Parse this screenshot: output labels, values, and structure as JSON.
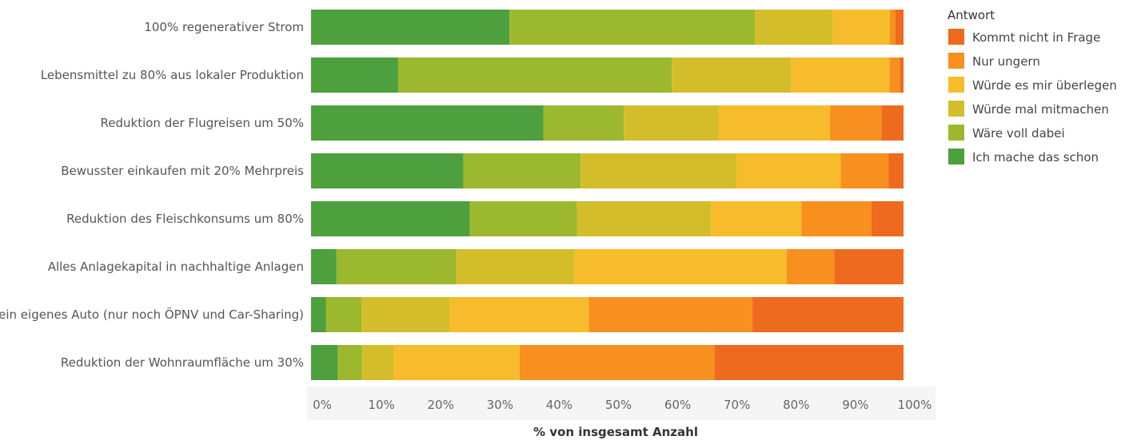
{
  "chart_data": {
    "type": "bar",
    "orientation": "horizontal",
    "stacked": "percent",
    "title": "",
    "xlabel": "% von insgesamt Anzahl",
    "ylabel": "",
    "xlim": [
      0,
      100
    ],
    "ticks": [
      "0%",
      "10%",
      "20%",
      "30%",
      "40%",
      "50%",
      "60%",
      "70%",
      "80%",
      "90%",
      "100%"
    ],
    "grid": false,
    "legend_position": "right",
    "legend_title": "Antwort",
    "categories": [
      "100% regenerativer Strom",
      "Lebensmittel zu 80% aus lokaler Produktion",
      "Reduktion der Flugreisen um 50%",
      "Bewusster einkaufen mit 20% Mehrpreis",
      "Reduktion des Fleischkonsums um 80%",
      "Alles Anlagekapital in nachhaltige Anlagen",
      "Kein eigenes Auto (nur noch ÖPNV und Car-Sharing)",
      "Reduktion der Wohnraumfläche um 30%"
    ],
    "series": [
      {
        "name": "Ich mache das schon",
        "color": "#4e9f3d",
        "values": [
          33.5,
          14.7,
          39.2,
          25.7,
          26.8,
          4.3,
          2.5,
          4.5
        ]
      },
      {
        "name": "Wäre voll dabei",
        "color": "#9bb82e",
        "values": [
          41.4,
          46.2,
          13.6,
          19.8,
          18.1,
          20.2,
          6.0,
          4.1
        ]
      },
      {
        "name": "Würde mal mitmachen",
        "color": "#d4bd2a",
        "values": [
          13.2,
          20.1,
          16.0,
          26.3,
          22.6,
          20.0,
          14.9,
          5.3
        ]
      },
      {
        "name": "Würde es mir überlegen",
        "color": "#f7bc2c",
        "values": [
          9.6,
          16.6,
          18.8,
          17.6,
          15.3,
          35.8,
          23.5,
          21.3
        ]
      },
      {
        "name": "Nur ungern",
        "color": "#f7901e",
        "values": [
          0.9,
          1.8,
          8.7,
          8.1,
          11.8,
          8.0,
          27.6,
          32.9
        ]
      },
      {
        "name": "Kommt nicht in Frage",
        "color": "#ee6a1f",
        "values": [
          1.4,
          0.6,
          3.7,
          2.5,
          5.4,
          11.7,
          25.5,
          31.9
        ]
      }
    ]
  }
}
